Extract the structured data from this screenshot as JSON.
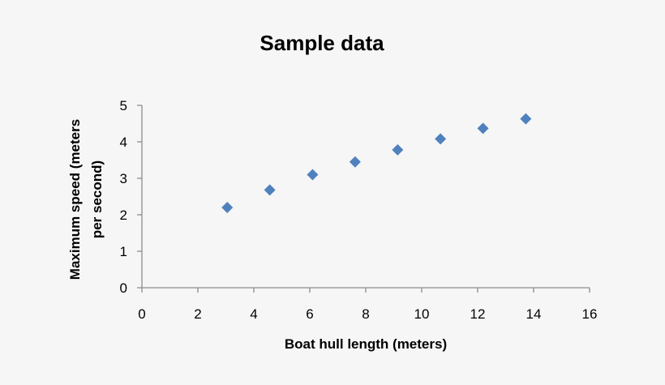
{
  "chart_data": {
    "type": "scatter",
    "title": "Sample data",
    "xlabel": "Boat hull length (meters)",
    "ylabel_lines": [
      "Maximum speed (meters",
      "per second)"
    ],
    "xlim": [
      0,
      16
    ],
    "ylim": [
      0,
      5
    ],
    "x_ticks": [
      0,
      2,
      4,
      6,
      8,
      10,
      12,
      14,
      16
    ],
    "y_ticks": [
      0,
      1,
      2,
      3,
      4,
      5
    ],
    "grid": false,
    "legend": "none",
    "marker": "diamond",
    "marker_color": "#4f81bd",
    "points": [
      {
        "x": 3.05,
        "y": 2.2
      },
      {
        "x": 4.57,
        "y": 2.68
      },
      {
        "x": 6.1,
        "y": 3.1
      },
      {
        "x": 7.62,
        "y": 3.45
      },
      {
        "x": 9.14,
        "y": 3.78
      },
      {
        "x": 10.67,
        "y": 4.08
      },
      {
        "x": 12.19,
        "y": 4.37
      },
      {
        "x": 13.72,
        "y": 4.63
      }
    ]
  }
}
